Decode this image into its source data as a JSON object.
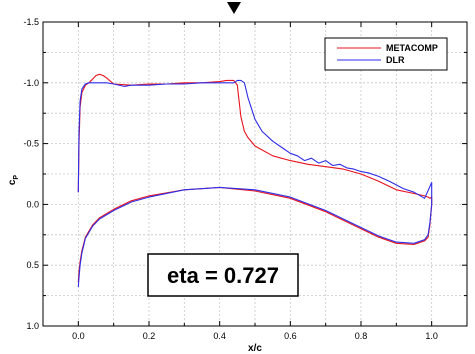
{
  "chart_data": {
    "type": "line",
    "title": "",
    "xlabel": "x/c",
    "ylabel_main": "c",
    "ylabel_sub": "P",
    "xlim": [
      -0.1,
      1.1
    ],
    "ylim": [
      -1.5,
      1.0
    ],
    "y_inverted": true,
    "grid": true,
    "legend_position": "top-right",
    "x_ticks": [
      "0.0",
      "0.2",
      "0.4",
      "0.6",
      "0.8",
      "1.0"
    ],
    "x_tick_values": [
      0.0,
      0.2,
      0.4,
      0.6,
      0.8,
      1.0
    ],
    "y_ticks": [
      "-1.5",
      "-1.0",
      "-0.5",
      "0.0",
      "0.5",
      "1.0"
    ],
    "y_tick_values": [
      -1.5,
      -1.0,
      -0.5,
      0.0,
      0.5,
      1.0
    ],
    "annotation": "eta = 0.727",
    "series": [
      {
        "name": "METACOMP",
        "color": "#e8131c",
        "x": [
          0.0,
          0.002,
          0.005,
          0.01,
          0.02,
          0.03,
          0.04,
          0.05,
          0.06,
          0.07,
          0.08,
          0.1,
          0.15,
          0.2,
          0.25,
          0.3,
          0.35,
          0.4,
          0.42,
          0.44,
          0.45,
          0.46,
          0.47,
          0.48,
          0.5,
          0.55,
          0.6,
          0.65,
          0.7,
          0.75,
          0.8,
          0.85,
          0.9,
          0.95,
          0.98,
          0.99,
          0.995,
          1.0,
          1.0,
          0.995,
          0.99,
          0.98,
          0.95,
          0.9,
          0.85,
          0.8,
          0.75,
          0.7,
          0.6,
          0.5,
          0.4,
          0.3,
          0.2,
          0.15,
          0.1,
          0.06,
          0.04,
          0.02,
          0.01,
          0.005,
          0.002,
          0.0
        ],
        "y": [
          -0.1,
          -0.5,
          -0.8,
          -0.92,
          -0.98,
          -1.0,
          -1.03,
          -1.06,
          -1.07,
          -1.06,
          -1.04,
          -0.99,
          -0.98,
          -0.99,
          -0.99,
          -1.0,
          -1.0,
          -1.01,
          -1.02,
          -1.02,
          -0.98,
          -0.72,
          -0.6,
          -0.55,
          -0.48,
          -0.4,
          -0.36,
          -0.33,
          -0.31,
          -0.29,
          -0.25,
          -0.19,
          -0.12,
          -0.09,
          -0.07,
          -0.06,
          -0.05,
          -0.06,
          0.0,
          0.17,
          0.27,
          0.3,
          0.33,
          0.32,
          0.27,
          0.2,
          0.13,
          0.06,
          -0.05,
          -0.11,
          -0.14,
          -0.12,
          -0.07,
          -0.03,
          0.04,
          0.11,
          0.17,
          0.27,
          0.38,
          0.47,
          0.55,
          0.64
        ]
      },
      {
        "name": "DLR",
        "color": "#2e2ee8",
        "x": [
          0.0,
          0.002,
          0.005,
          0.01,
          0.02,
          0.03,
          0.04,
          0.05,
          0.06,
          0.08,
          0.1,
          0.13,
          0.15,
          0.2,
          0.25,
          0.3,
          0.35,
          0.4,
          0.42,
          0.44,
          0.45,
          0.46,
          0.47,
          0.48,
          0.5,
          0.52,
          0.55,
          0.58,
          0.6,
          0.62,
          0.64,
          0.66,
          0.68,
          0.7,
          0.72,
          0.74,
          0.76,
          0.78,
          0.8,
          0.82,
          0.85,
          0.88,
          0.9,
          0.92,
          0.95,
          0.98,
          1.0,
          1.0,
          0.995,
          0.99,
          0.98,
          0.95,
          0.9,
          0.85,
          0.8,
          0.75,
          0.7,
          0.6,
          0.5,
          0.4,
          0.3,
          0.2,
          0.15,
          0.1,
          0.06,
          0.04,
          0.02,
          0.01,
          0.005,
          0.002,
          0.0
        ],
        "y": [
          -0.1,
          -0.6,
          -0.85,
          -0.95,
          -0.99,
          -1.0,
          -1.0,
          -1.0,
          -1.0,
          -1.0,
          -0.99,
          -0.97,
          -0.98,
          -0.98,
          -0.99,
          -0.99,
          -1.0,
          -1.0,
          -1.0,
          -1.0,
          -1.02,
          -1.02,
          -1.0,
          -0.88,
          -0.7,
          -0.6,
          -0.52,
          -0.46,
          -0.42,
          -0.4,
          -0.36,
          -0.38,
          -0.34,
          -0.36,
          -0.32,
          -0.33,
          -0.3,
          -0.29,
          -0.27,
          -0.26,
          -0.23,
          -0.19,
          -0.16,
          -0.13,
          -0.1,
          -0.05,
          -0.18,
          0.0,
          0.15,
          0.25,
          0.29,
          0.32,
          0.31,
          0.26,
          0.19,
          0.12,
          0.05,
          -0.06,
          -0.12,
          -0.14,
          -0.12,
          -0.06,
          -0.02,
          0.05,
          0.12,
          0.18,
          0.28,
          0.4,
          0.5,
          0.6,
          0.68
        ]
      }
    ]
  }
}
